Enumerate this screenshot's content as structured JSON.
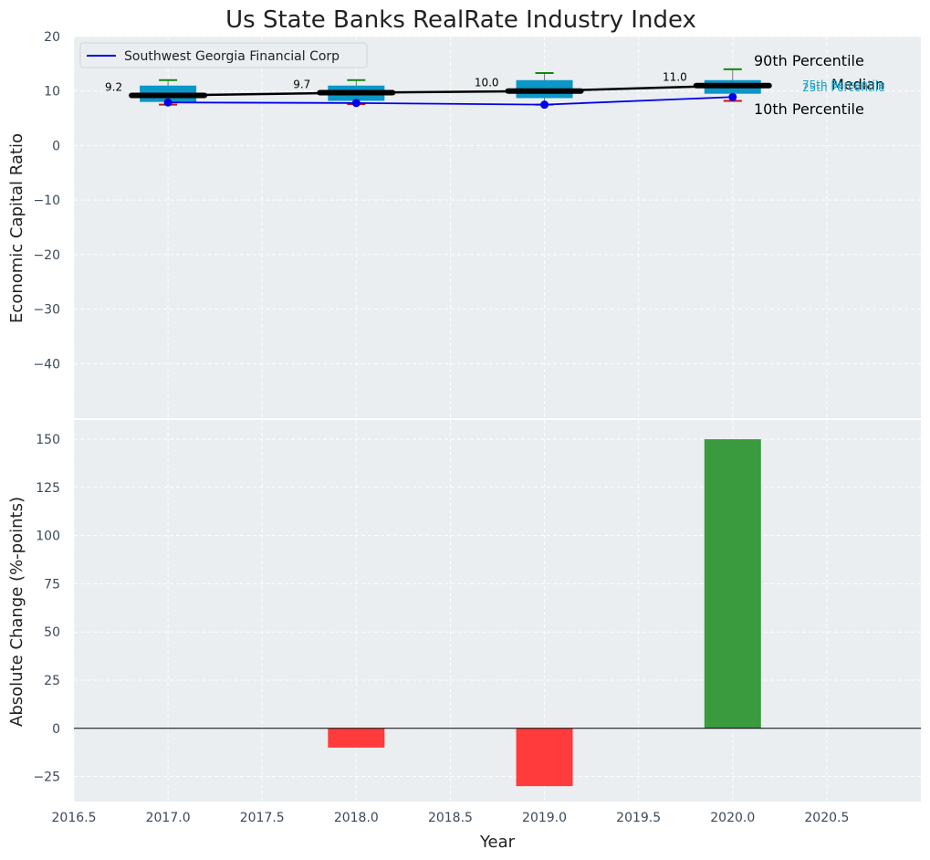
{
  "chart_data": [
    {
      "type": "box",
      "title": "Us State Banks RealRate Industry Index",
      "xlabel": "",
      "ylabel": "Economic Capital Ratio",
      "ylim": [
        -50,
        20
      ],
      "xlim": [
        2016.5,
        2021.0
      ],
      "yticks": [
        "20",
        "10",
        "0",
        "−10",
        "−20",
        "−30",
        "−40"
      ],
      "ytick_values": [
        20,
        10,
        0,
        -10,
        -20,
        -30,
        -40
      ],
      "grid": true,
      "legend": {
        "position": "top-left",
        "entries": [
          "Southwest Georgia Financial Corp"
        ]
      },
      "boxes": [
        {
          "x": 2017,
          "p10": 7.5,
          "p25": 8.0,
          "median": 9.2,
          "p75": 11.0,
          "p90": 12.0
        },
        {
          "x": 2018,
          "p10": 7.6,
          "p25": 8.2,
          "median": 9.7,
          "p75": 11.0,
          "p90": 12.0
        },
        {
          "x": 2019,
          "p10": 7.5,
          "p25": 8.7,
          "median": 10.0,
          "p75": 12.0,
          "p90": 13.3
        },
        {
          "x": 2020,
          "p10": 8.2,
          "p25": 9.5,
          "median": 11.0,
          "p75": 12.0,
          "p90": 14.0
        }
      ],
      "median_labels": [
        "9.2",
        "9.7",
        "10.0",
        "11.0"
      ],
      "series": [
        {
          "name": "Southwest Georgia Financial Corp",
          "x": [
            2017,
            2018,
            2019,
            2020
          ],
          "values": [
            7.9,
            7.8,
            7.5,
            8.9
          ],
          "color": "#0000ee"
        }
      ],
      "annotations": {
        "p90": "90th Percentile",
        "median": "Median",
        "p10": "10th Percentile",
        "p75": "75th Percentile",
        "p25": "25th Percentile"
      }
    },
    {
      "type": "bar",
      "xlabel": "Year",
      "ylabel": "Absolute Change (%-points)",
      "ylim": [
        -38,
        160
      ],
      "yticks": [
        "150",
        "125",
        "100",
        "75",
        "50",
        "25",
        "0",
        "−25"
      ],
      "ytick_values": [
        150,
        125,
        100,
        75,
        50,
        25,
        0,
        -25
      ],
      "xticks": [
        "2016.5",
        "2017.0",
        "2017.5",
        "2018.0",
        "2018.5",
        "2019.0",
        "2019.5",
        "2020.0",
        "2020.5"
      ],
      "xtick_values": [
        2016.5,
        2017.0,
        2017.5,
        2018.0,
        2018.5,
        2019.0,
        2019.5,
        2020.0,
        2020.5
      ],
      "grid": true,
      "bars": [
        {
          "x": 2018,
          "value": -10,
          "color": "#ff3b3b"
        },
        {
          "x": 2019,
          "value": -30,
          "color": "#ff3b3b"
        },
        {
          "x": 2020,
          "value": 150,
          "color": "#3a9a3e"
        }
      ]
    }
  ]
}
